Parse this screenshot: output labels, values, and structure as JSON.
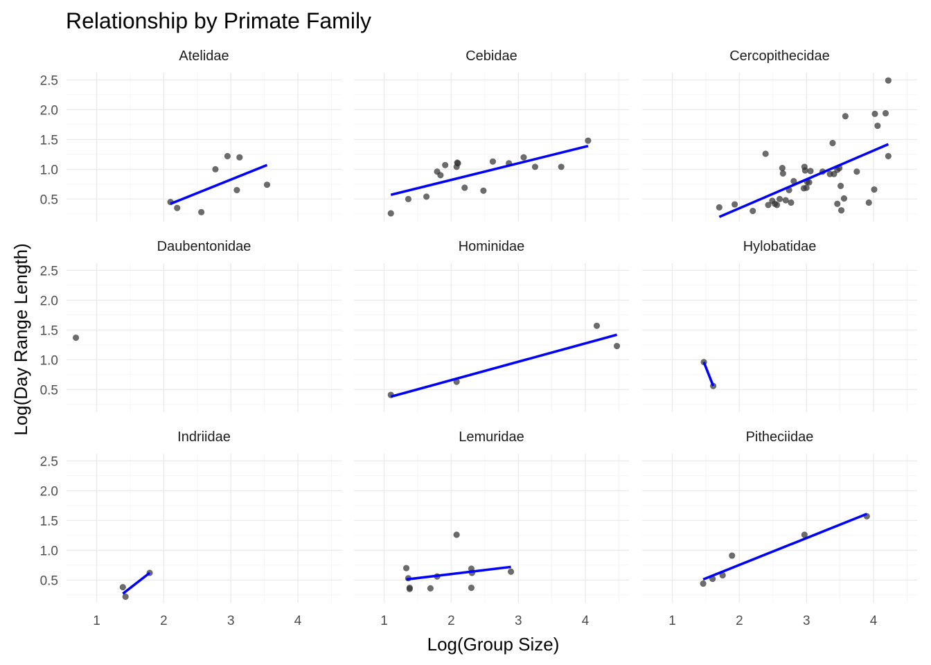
{
  "chart_data": {
    "type": "scatter",
    "title": "Relationship by Primate Family",
    "xlabel": "Log(Group Size)",
    "ylabel": "Log(Day Range Length)",
    "layout": "facets 3x3",
    "grid": true,
    "scales": "free_x",
    "colors": {
      "points": "#333333",
      "fit_line": "#0000ff",
      "grid": "#ebebeb",
      "background": "#ffffff"
    },
    "y_ticks": [
      0.5,
      1.0,
      1.5,
      2.0,
      2.5
    ],
    "y_tick_labels": [
      "0.5",
      "1.0",
      "1.5",
      "2.0",
      "2.5"
    ],
    "ylim": [
      0.12,
      2.62
    ],
    "facets": [
      {
        "name": "Atelidae",
        "xlim": [
          0.55,
          4.65
        ],
        "x_ticks": [
          1,
          2,
          3,
          4
        ],
        "x_tick_labels": [
          "1",
          "2",
          "3",
          "4"
        ],
        "points": [
          [
            2.1,
            0.45
          ],
          [
            2.2,
            0.35
          ],
          [
            2.56,
            0.28
          ],
          [
            2.77,
            1.0
          ],
          [
            2.95,
            1.22
          ],
          [
            3.09,
            0.65
          ],
          [
            3.13,
            1.2
          ],
          [
            3.54,
            0.74
          ]
        ],
        "fit": [
          [
            2.1,
            0.42
          ],
          [
            3.54,
            1.07
          ]
        ]
      },
      {
        "name": "Cebidae",
        "xlim": [
          0.55,
          4.65
        ],
        "x_ticks": [
          1,
          2,
          3,
          4
        ],
        "x_tick_labels": [
          "1",
          "2",
          "3",
          "4"
        ],
        "points": [
          [
            1.1,
            0.26
          ],
          [
            1.36,
            0.5
          ],
          [
            1.63,
            0.54
          ],
          [
            1.79,
            0.96
          ],
          [
            1.84,
            0.9
          ],
          [
            1.91,
            1.07
          ],
          [
            2.08,
            1.04
          ],
          [
            2.09,
            1.11
          ],
          [
            2.1,
            1.1
          ],
          [
            2.2,
            0.69
          ],
          [
            2.48,
            0.64
          ],
          [
            2.62,
            1.13
          ],
          [
            2.86,
            1.1
          ],
          [
            3.08,
            1.2
          ],
          [
            3.25,
            1.04
          ],
          [
            3.64,
            1.04
          ],
          [
            4.04,
            1.48
          ]
        ],
        "fit": [
          [
            1.1,
            0.57
          ],
          [
            4.04,
            1.39
          ]
        ]
      },
      {
        "name": "Cercopithecidae",
        "xlim": [
          0.55,
          4.65
        ],
        "x_ticks": [
          1,
          2,
          3,
          4
        ],
        "x_tick_labels": [
          "1",
          "2",
          "3",
          "4"
        ],
        "points": [
          [
            1.7,
            0.36
          ],
          [
            1.93,
            0.41
          ],
          [
            2.2,
            0.3
          ],
          [
            2.39,
            1.26
          ],
          [
            2.43,
            0.4
          ],
          [
            2.49,
            0.47
          ],
          [
            2.53,
            0.42
          ],
          [
            2.56,
            0.4
          ],
          [
            2.6,
            0.5
          ],
          [
            2.64,
            1.02
          ],
          [
            2.65,
            0.93
          ],
          [
            2.69,
            0.48
          ],
          [
            2.74,
            0.65
          ],
          [
            2.77,
            0.44
          ],
          [
            2.81,
            0.8
          ],
          [
            2.96,
            0.68
          ],
          [
            2.97,
            1.04
          ],
          [
            2.98,
            0.98
          ],
          [
            3.0,
            0.69
          ],
          [
            3.01,
            0.79
          ],
          [
            3.04,
            0.78
          ],
          [
            3.06,
            0.97
          ],
          [
            3.24,
            0.96
          ],
          [
            3.35,
            0.92
          ],
          [
            3.39,
            1.44
          ],
          [
            3.41,
            0.92
          ],
          [
            3.46,
            0.42
          ],
          [
            3.46,
            0.99
          ],
          [
            3.49,
            1.02
          ],
          [
            3.51,
            0.72
          ],
          [
            3.52,
            0.31
          ],
          [
            3.56,
            0.51
          ],
          [
            3.58,
            1.89
          ],
          [
            3.75,
            0.96
          ],
          [
            3.93,
            0.44
          ],
          [
            4.01,
            0.66
          ],
          [
            4.02,
            1.93
          ],
          [
            4.06,
            1.73
          ],
          [
            4.18,
            1.94
          ],
          [
            4.22,
            2.49
          ],
          [
            4.22,
            1.22
          ]
        ],
        "fit": [
          [
            1.7,
            0.2
          ],
          [
            4.22,
            1.42
          ]
        ]
      },
      {
        "name": "Daubentonidae",
        "xlim": [
          0.55,
          4.65
        ],
        "x_ticks": [
          1,
          2,
          3,
          4
        ],
        "x_tick_labels": [
          "1",
          "2",
          "3",
          "4"
        ],
        "points": [
          [
            0.69,
            1.37
          ]
        ],
        "fit": []
      },
      {
        "name": "Hominidae",
        "xlim": [
          0.55,
          4.65
        ],
        "x_ticks": [
          1,
          2,
          3,
          4
        ],
        "x_tick_labels": [
          "1",
          "2",
          "3",
          "4"
        ],
        "points": [
          [
            1.1,
            0.41
          ],
          [
            2.08,
            0.63
          ],
          [
            4.17,
            1.57
          ],
          [
            4.47,
            1.23
          ]
        ],
        "fit": [
          [
            1.1,
            0.38
          ],
          [
            4.47,
            1.42
          ]
        ]
      },
      {
        "name": "Hylobatidae",
        "xlim": [
          0.55,
          4.65
        ],
        "x_ticks": [
          1,
          2,
          3,
          4
        ],
        "x_tick_labels": [
          "1",
          "2",
          "3",
          "4"
        ],
        "points": [
          [
            1.47,
            0.96
          ],
          [
            1.61,
            0.56
          ]
        ],
        "fit": [
          [
            1.47,
            0.96
          ],
          [
            1.61,
            0.56
          ]
        ]
      },
      {
        "name": "Indriidae",
        "xlim": [
          0.55,
          4.65
        ],
        "x_ticks": [
          1,
          2,
          3,
          4
        ],
        "x_tick_labels": [
          "1",
          "2",
          "3",
          "4"
        ],
        "points": [
          [
            1.39,
            0.38
          ],
          [
            1.43,
            0.22
          ],
          [
            1.79,
            0.62
          ]
        ],
        "fit": [
          [
            1.39,
            0.27
          ],
          [
            1.79,
            0.62
          ]
        ]
      },
      {
        "name": "Lemuridae",
        "xlim": [
          0.55,
          4.65
        ],
        "x_ticks": [
          1,
          2,
          3,
          4
        ],
        "x_tick_labels": [
          "1",
          "2",
          "3",
          "4"
        ],
        "points": [
          [
            1.33,
            0.7
          ],
          [
            1.36,
            0.53
          ],
          [
            1.38,
            0.37
          ],
          [
            1.38,
            0.35
          ],
          [
            1.69,
            0.36
          ],
          [
            1.79,
            0.56
          ],
          [
            2.08,
            1.26
          ],
          [
            2.3,
            0.69
          ],
          [
            2.31,
            0.62
          ],
          [
            2.3,
            0.37
          ],
          [
            2.89,
            0.64
          ]
        ],
        "fit": [
          [
            1.33,
            0.51
          ],
          [
            2.89,
            0.72
          ]
        ]
      },
      {
        "name": "Pitheciidae",
        "xlim": [
          0.55,
          4.65
        ],
        "x_ticks": [
          1,
          2,
          3,
          4
        ],
        "x_tick_labels": [
          "1",
          "2",
          "3",
          "4"
        ],
        "points": [
          [
            1.46,
            0.44
          ],
          [
            1.6,
            0.52
          ],
          [
            1.75,
            0.58
          ],
          [
            1.89,
            0.91
          ],
          [
            2.97,
            1.26
          ],
          [
            3.9,
            1.57
          ]
        ],
        "fit": [
          [
            1.46,
            0.51
          ],
          [
            3.9,
            1.61
          ]
        ]
      }
    ]
  }
}
